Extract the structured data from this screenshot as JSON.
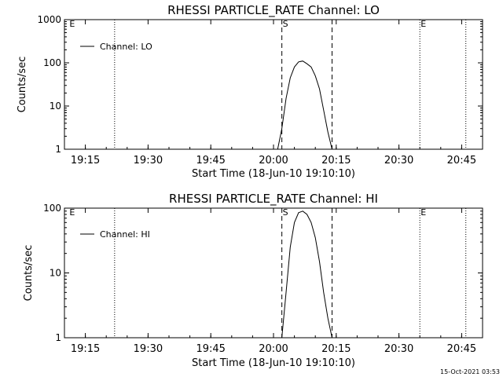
{
  "chart_data": [
    {
      "type": "line",
      "title": "RHESSI PARTICLE_RATE Channel: LO",
      "xlabel": "Start Time (18-Jun-10 19:10:10)",
      "ylabel": "Counts/sec",
      "yscale": "log",
      "xlim": [
        "19:10",
        "20:50"
      ],
      "ylim": [
        1,
        1000
      ],
      "x_ticks": [
        "19:15",
        "19:30",
        "19:45",
        "20:00",
        "20:15",
        "20:30",
        "20:45"
      ],
      "y_ticks": [
        "1",
        "10",
        "100",
        "1000"
      ],
      "legend": {
        "position": "top-left",
        "entries": [
          "Channel: LO"
        ]
      },
      "grid": false,
      "markers": [
        {
          "time": "19:11",
          "label": "E"
        },
        {
          "time": "20:02",
          "label": "S"
        },
        {
          "time": "20:35",
          "label": "E"
        }
      ],
      "vlines_dashed": [
        "20:02",
        "20:14"
      ],
      "vlines_dotted": [
        "19:22",
        "20:35",
        "20:46"
      ],
      "series": [
        {
          "name": "Channel: LO",
          "x": [
            "20:01",
            "20:02",
            "20:03",
            "20:04",
            "20:05",
            "20:06",
            "20:07",
            "20:08",
            "20:09",
            "20:10",
            "20:11",
            "20:12",
            "20:13",
            "20:14"
          ],
          "values": [
            1,
            3,
            15,
            45,
            80,
            105,
            110,
            95,
            80,
            50,
            25,
            8,
            2.5,
            1
          ]
        }
      ]
    },
    {
      "type": "line",
      "title": "RHESSI PARTICLE_RATE Channel: HI",
      "xlabel": "Start Time (18-Jun-10 19:10:10)",
      "ylabel": "Counts/sec",
      "yscale": "log",
      "xlim": [
        "19:10",
        "20:50"
      ],
      "ylim": [
        1,
        100
      ],
      "x_ticks": [
        "19:15",
        "19:30",
        "19:45",
        "20:00",
        "20:15",
        "20:30",
        "20:45"
      ],
      "y_ticks": [
        "1",
        "10",
        "100"
      ],
      "legend": {
        "position": "top-left",
        "entries": [
          "Channel: HI"
        ]
      },
      "grid": false,
      "markers": [
        {
          "time": "19:11",
          "label": "E"
        },
        {
          "time": "20:02",
          "label": "S"
        },
        {
          "time": "20:35",
          "label": "E"
        }
      ],
      "vlines_dashed": [
        "20:02",
        "20:14"
      ],
      "vlines_dotted": [
        "19:22",
        "20:35",
        "20:46"
      ],
      "series": [
        {
          "name": "Channel: HI",
          "x": [
            "20:02",
            "20:03",
            "20:04",
            "20:05",
            "20:06",
            "20:07",
            "20:08",
            "20:09",
            "20:10",
            "20:11",
            "20:12",
            "20:13",
            "20:14"
          ],
          "values": [
            1,
            5,
            25,
            60,
            85,
            90,
            80,
            60,
            35,
            15,
            5,
            2,
            1
          ]
        }
      ]
    }
  ],
  "timestamp": "15-Oct-2021 03:53"
}
